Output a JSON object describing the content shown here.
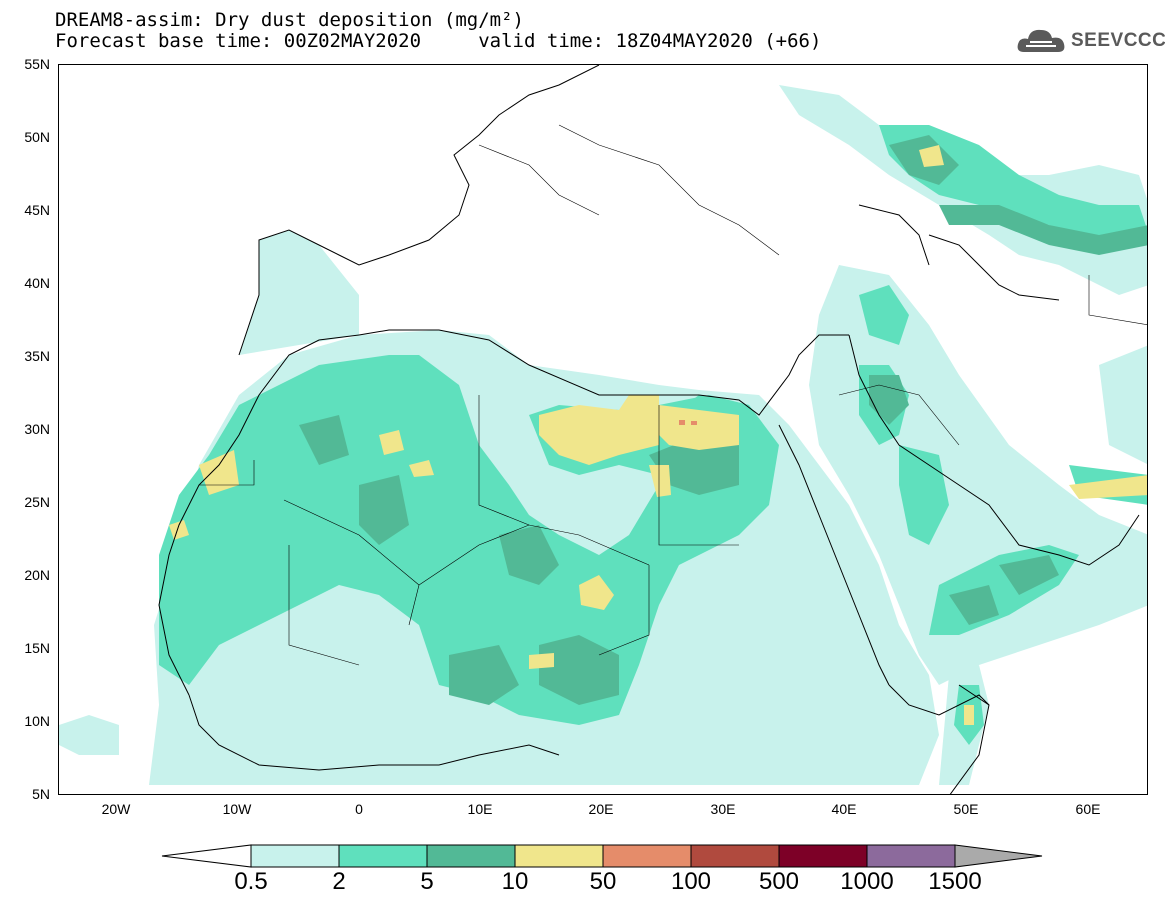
{
  "header": {
    "title_line1": "DREAM8-assim: Dry dust deposition (mg/m²)",
    "title_line2": "Forecast base time: 00Z02MAY2020     valid time: 18Z04MAY2020 (+66)"
  },
  "logo": {
    "text": "SEEVCCC",
    "icon": "cloud-icon"
  },
  "axes": {
    "lat_labels": [
      "55N",
      "50N",
      "45N",
      "40N",
      "35N",
      "30N",
      "25N",
      "20N",
      "15N",
      "10N",
      "5N"
    ],
    "lon_labels": [
      "20W",
      "10W",
      "0",
      "10E",
      "20E",
      "30E",
      "40E",
      "50E",
      "60E"
    ]
  },
  "colorbar": {
    "labels": [
      "0.5",
      "2",
      "5",
      "10",
      "50",
      "100",
      "500",
      "1000",
      "1500"
    ],
    "colors": [
      "#c8f2ec",
      "#5fe0bd",
      "#52b996",
      "#f0e68c",
      "#e58c6a",
      "#b04a3e",
      "#7d0027",
      "#8c6a9c"
    ],
    "under_color": "#ffffff",
    "over_color": "#aaaaaa"
  },
  "legend_colors": {
    "level1": "#c8f2ec",
    "level2": "#5fe0bd",
    "level3": "#52b996",
    "level4": "#f0e68c",
    "level5": "#e58c6a"
  }
}
